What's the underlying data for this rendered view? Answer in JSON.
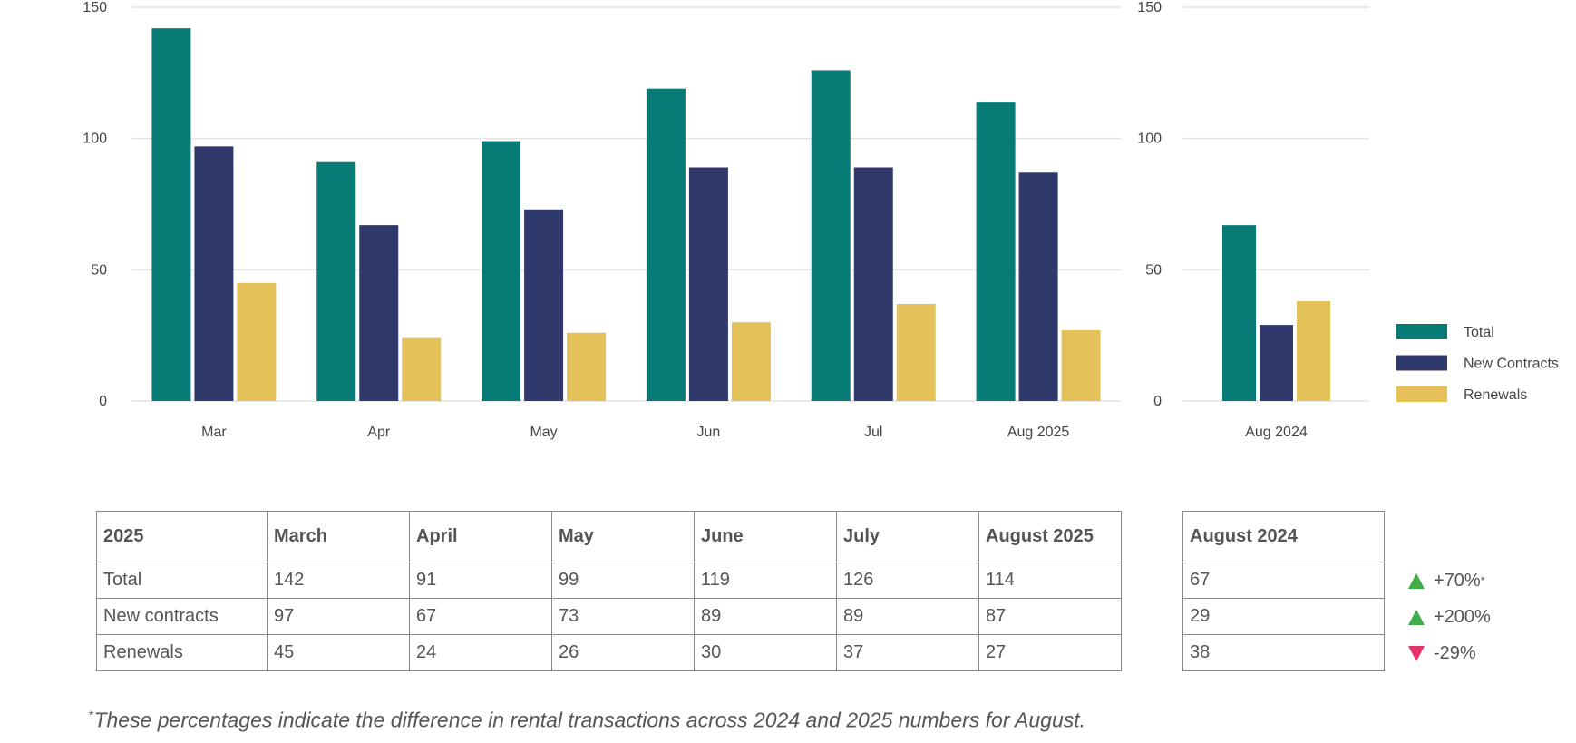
{
  "chart_data": [
    {
      "type": "bar",
      "categories": [
        "Mar",
        "Apr",
        "May",
        "Jun",
        "Jul",
        "Aug 2025"
      ],
      "series": [
        {
          "name": "Total",
          "values": [
            142,
            91,
            99,
            119,
            126,
            114
          ]
        },
        {
          "name": "New Contracts",
          "values": [
            97,
            67,
            73,
            89,
            89,
            87
          ]
        },
        {
          "name": "Renewals",
          "values": [
            45,
            24,
            26,
            30,
            37,
            27
          ]
        }
      ],
      "yticks": [
        0,
        50,
        100,
        150
      ],
      "ylim": [
        0,
        150
      ],
      "grid": true
    },
    {
      "type": "bar",
      "categories": [
        "Aug 2024"
      ],
      "series": [
        {
          "name": "Total",
          "values": [
            67
          ]
        },
        {
          "name": "New Contracts",
          "values": [
            29
          ]
        },
        {
          "name": "Renewals",
          "values": [
            38
          ]
        }
      ],
      "yticks": [
        0,
        50,
        100,
        150
      ],
      "ylim": [
        0,
        150
      ],
      "grid": true
    }
  ],
  "legend": {
    "position": "right",
    "items": [
      {
        "label": "Total",
        "color": "#097b76"
      },
      {
        "label": "New Contracts",
        "color": "#30396b"
      },
      {
        "label": "Renewals",
        "color": "#e5c259"
      }
    ]
  },
  "table_2025": {
    "headers": [
      "2025",
      "March",
      "April",
      "May",
      "June",
      "July",
      "August 2025"
    ],
    "rows": [
      {
        "label": "Total",
        "values": [
          "142",
          "91",
          "99",
          "119",
          "126",
          "114"
        ]
      },
      {
        "label": "New contracts",
        "values": [
          "97",
          "67",
          "73",
          "89",
          "89",
          "87"
        ]
      },
      {
        "label": "Renewals",
        "values": [
          "45",
          "24",
          "26",
          "30",
          "37",
          "27"
        ]
      }
    ]
  },
  "table_2024": {
    "header": "August 2024",
    "rows": [
      {
        "value": "67"
      },
      {
        "value": "29"
      },
      {
        "value": "38"
      }
    ]
  },
  "changes": [
    {
      "direction": "up",
      "text": "+70%",
      "star": "*"
    },
    {
      "direction": "up",
      "text": "+200%",
      "star": ""
    },
    {
      "direction": "down",
      "text": "-29%",
      "star": ""
    }
  ],
  "footnote": {
    "mark": "*",
    "text": "These percentages indicate the difference in rental transactions across 2024 and 2025 numbers for August."
  }
}
